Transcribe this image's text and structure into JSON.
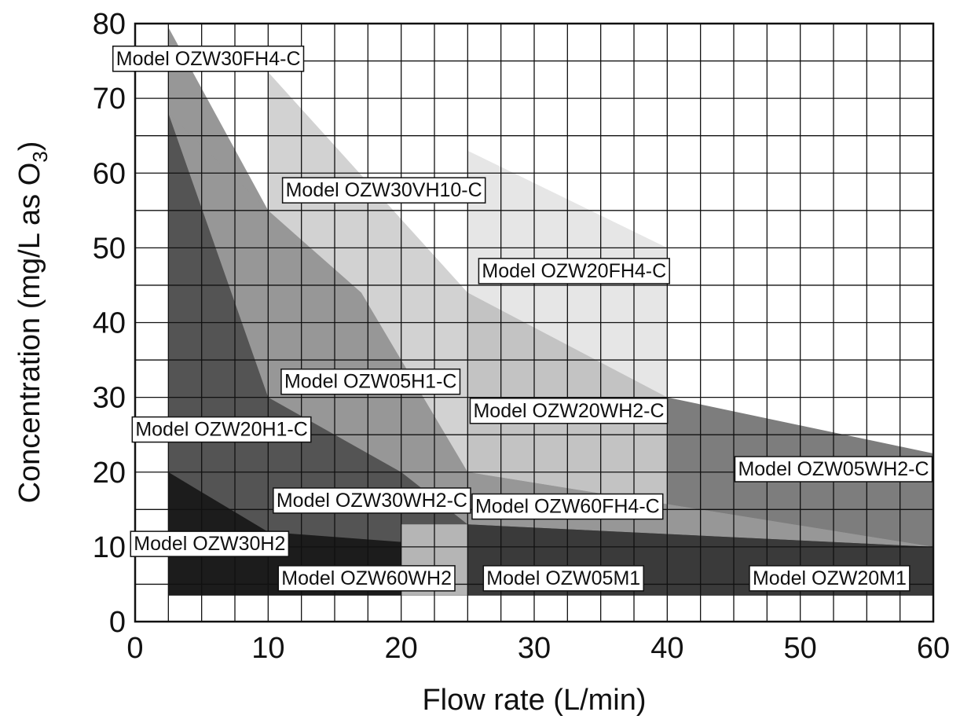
{
  "chart_data": {
    "type": "area",
    "xlabel": "Flow rate (L/min)",
    "ylabel_main": "Concentration (mg/L as O",
    "ylabel_sub": "3",
    "ylabel_tail": ")",
    "xlim": [
      0,
      60
    ],
    "ylim": [
      0,
      80
    ],
    "x_ticks": [
      0,
      10,
      20,
      30,
      40,
      50,
      60
    ],
    "y_ticks": [
      0,
      10,
      20,
      30,
      40,
      50,
      60,
      70,
      80
    ],
    "x_tick_labels": [
      "0",
      "10",
      "20",
      "30",
      "40",
      "50",
      "60"
    ],
    "y_tick_labels": [
      "0",
      "10",
      "20",
      "30",
      "40",
      "50",
      "60",
      "70",
      "80"
    ],
    "grid": {
      "x_step": 2.5,
      "y_step": 5
    },
    "min_concentration": 3.5,
    "regions": [
      {
        "name": "Model OZW60FH4-C",
        "color": "#7d7d7d",
        "points": [
          [
            25,
            44
          ],
          [
            40,
            30
          ],
          [
            60,
            22.5
          ],
          [
            60,
            3.5
          ],
          [
            25,
            3.5
          ]
        ],
        "label_at": [
          52.5,
          20.5
        ]
      },
      {
        "name": "Model OZW30VH10-C",
        "color": "#e6e6e6",
        "points": [
          [
            25,
            63
          ],
          [
            40,
            50
          ],
          [
            40,
            3.5
          ],
          [
            25,
            3.5
          ]
        ],
        "label_at": [
          33,
          47
        ]
      },
      {
        "name": "Model OZW20FH4-C",
        "color": "#d2d2d2",
        "points": [
          [
            10,
            73.5
          ],
          [
            25,
            44
          ],
          [
            40,
            30
          ],
          [
            40,
            3.5
          ],
          [
            10,
            3.5
          ]
        ],
        "label_at": [
          18.7,
          57.8
        ]
      },
      {
        "name": "Model OZW30FH4-C",
        "color": "#c3c3c3",
        "points": [
          [
            25,
            44
          ],
          [
            40,
            30
          ],
          [
            40,
            3.5
          ],
          [
            25,
            3.5
          ]
        ],
        "label_at": [
          32.6,
          28.3
        ]
      },
      {
        "name": "Model OZW05WH2-C",
        "color": "#979797",
        "points": [
          [
            2.5,
            79.5
          ],
          [
            10,
            55
          ],
          [
            2.5,
            55
          ]
        ],
        "label_at": [
          5.5,
          75.4
        ]
      },
      {
        "name": "Model OZW20WH2-C",
        "color": "#979797",
        "points": [
          [
            2.5,
            68
          ],
          [
            10,
            55
          ],
          [
            17,
            44
          ],
          [
            25,
            20
          ],
          [
            60,
            10
          ],
          [
            60,
            3.5
          ],
          [
            2.5,
            3.5
          ]
        ],
        "label_at": [
          17.7,
          32.2
        ]
      },
      {
        "name": "Model OZW30WH2-C",
        "color": "#979797",
        "points": [
          [
            25,
            20
          ],
          [
            60,
            10
          ],
          [
            60,
            3.5
          ],
          [
            25,
            3.5
          ]
        ],
        "label_at": [
          32.5,
          15.5
        ]
      },
      {
        "name": "Model OZW05H1-C",
        "color": "#545454",
        "points": [
          [
            2.5,
            68
          ],
          [
            10,
            30
          ],
          [
            20,
            20
          ],
          [
            2.5,
            20
          ]
        ],
        "label_at": [
          6.5,
          25.8
        ]
      },
      {
        "name": "Model OZW20H1-C",
        "color": "#545454",
        "points": [
          [
            2.5,
            20
          ],
          [
            20,
            20
          ],
          [
            25,
            13
          ],
          [
            60,
            10
          ],
          [
            60,
            3.5
          ],
          [
            2.5,
            3.5
          ]
        ],
        "label_at": [
          17.8,
          16.3
        ]
      },
      {
        "name": "Model OZW30H2",
        "color": "#3a3a3a",
        "points": [
          [
            25,
            13
          ],
          [
            60,
            10
          ],
          [
            60,
            3.5
          ],
          [
            25,
            3.5
          ]
        ],
        "label_at": [
          32.2,
          5.9
        ]
      },
      {
        "name": "Model OZW60WH2",
        "color": "#3a3a3a",
        "points": [
          [
            40,
            11
          ],
          [
            60,
            10
          ],
          [
            60,
            3.5
          ],
          [
            40,
            3.5
          ]
        ],
        "label_at": [
          52.2,
          5.9
        ]
      },
      {
        "name": "Model OZW05M1",
        "color": "#1c1c1c",
        "points": [
          [
            2.5,
            20
          ],
          [
            10,
            12
          ],
          [
            25,
            10
          ],
          [
            25,
            3.5
          ],
          [
            2.5,
            3.5
          ]
        ],
        "label_at": [
          5.6,
          10.5
        ]
      },
      {
        "name": "Model OZW20M1",
        "color": "#b5b5b5",
        "points": [
          [
            20,
            13
          ],
          [
            25,
            13
          ],
          [
            25,
            3.5
          ],
          [
            20,
            3.5
          ]
        ],
        "label_at": [
          17.4,
          5.9
        ]
      }
    ],
    "labels": [
      "Model OZW05WH2-C",
      "Model OZW20FH4-C",
      "Model OZW30VH10-C",
      "Model OZW20WH2-C",
      "Model OZW30FH4-C",
      "Model OZW05H1-C",
      "Model OZW60FH4-C",
      "Model OZW20H1-C",
      "Model OZW30WH2-C",
      "Model OZW05M1",
      "Model OZW20M1",
      "Model OZW30H2",
      "Model OZW60WH2"
    ]
  }
}
